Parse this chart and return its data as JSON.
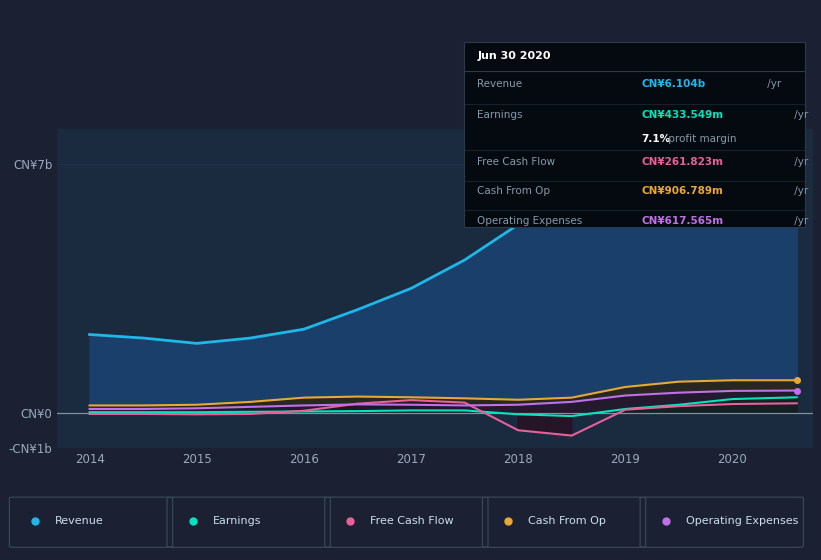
{
  "bg_color": "#1b2132",
  "plot_bg_color": "#1a2a3f",
  "years": [
    2014.0,
    2014.5,
    2015.0,
    2015.5,
    2016.0,
    2016.5,
    2017.0,
    2017.5,
    2018.0,
    2018.5,
    2019.0,
    2019.5,
    2020.0,
    2020.6
  ],
  "revenue": [
    2.2,
    2.1,
    1.95,
    2.1,
    2.35,
    2.9,
    3.5,
    4.3,
    5.3,
    6.2,
    6.8,
    6.65,
    6.3,
    6.1
  ],
  "earnings": [
    0.01,
    0.01,
    0.01,
    0.02,
    0.03,
    0.04,
    0.06,
    0.06,
    -0.05,
    -0.1,
    0.1,
    0.22,
    0.38,
    0.43
  ],
  "free_cash_flow": [
    -0.04,
    -0.04,
    -0.05,
    -0.04,
    0.05,
    0.25,
    0.35,
    0.28,
    -0.5,
    -0.65,
    0.08,
    0.18,
    0.24,
    0.26
  ],
  "cash_from_op": [
    0.2,
    0.2,
    0.22,
    0.3,
    0.42,
    0.45,
    0.43,
    0.4,
    0.36,
    0.42,
    0.72,
    0.87,
    0.91,
    0.91
  ],
  "operating_expenses": [
    0.1,
    0.1,
    0.12,
    0.16,
    0.2,
    0.23,
    0.22,
    0.2,
    0.22,
    0.3,
    0.48,
    0.56,
    0.61,
    0.62
  ],
  "revenue_color": "#1eb8e8",
  "earnings_color": "#00e5c0",
  "free_cash_flow_color": "#e8609a",
  "cash_from_op_color": "#e8a838",
  "operating_expenses_color": "#c070e8",
  "ylim_min": -1.0,
  "ylim_max": 8.0,
  "ytick_vals": [
    -1.0,
    0.0,
    7.0
  ],
  "ytick_labels": [
    "-CN¥1b",
    "CN¥0",
    "CN¥7b"
  ],
  "xtick_vals": [
    2014,
    2015,
    2016,
    2017,
    2018,
    2019,
    2020
  ],
  "grid_color": "#253050",
  "tooltip_title": "Jun 30 2020",
  "tooltip_revenue_label": "Revenue",
  "tooltip_revenue_val": "CN¥6.104b",
  "tooltip_earnings_label": "Earnings",
  "tooltip_earnings_val": "CN¥433.549m",
  "tooltip_margin": "7.1%",
  "tooltip_margin_text": " profit margin",
  "tooltip_fcf_label": "Free Cash Flow",
  "tooltip_fcf_val": "CN¥261.823m",
  "tooltip_cashop_label": "Cash From Op",
  "tooltip_cashop_val": "CN¥906.789m",
  "tooltip_opex_label": "Operating Expenses",
  "tooltip_opex_val": "CN¥617.565m",
  "legend_labels": [
    "Revenue",
    "Earnings",
    "Free Cash Flow",
    "Cash From Op",
    "Operating Expenses"
  ],
  "legend_colors": [
    "#1eb8e8",
    "#00e5c0",
    "#e8609a",
    "#e8a838",
    "#c070e8"
  ]
}
